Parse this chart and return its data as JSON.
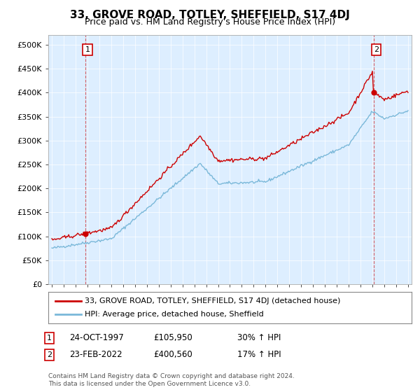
{
  "title": "33, GROVE ROAD, TOTLEY, SHEFFIELD, S17 4DJ",
  "subtitle": "Price paid vs. HM Land Registry's House Price Index (HPI)",
  "legend_line1": "33, GROVE ROAD, TOTLEY, SHEFFIELD, S17 4DJ (detached house)",
  "legend_line2": "HPI: Average price, detached house, Sheffield",
  "footnote": "Contains HM Land Registry data © Crown copyright and database right 2024.\nThis data is licensed under the Open Government Licence v3.0.",
  "annotation1_label": "1",
  "annotation1_date": "24-OCT-1997",
  "annotation1_price": "£105,950",
  "annotation1_hpi": "30% ↑ HPI",
  "annotation2_label": "2",
  "annotation2_date": "23-FEB-2022",
  "annotation2_price": "£400,560",
  "annotation2_hpi": "17% ↑ HPI",
  "hpi_color": "#7ab8d9",
  "price_color": "#cc0000",
  "dot_color": "#cc0000",
  "background_color": "#ffffff",
  "plot_bg_color": "#ddeeff",
  "grid_color": "#ffffff",
  "ylim": [
    0,
    520000
  ],
  "yticks": [
    0,
    50000,
    100000,
    150000,
    200000,
    250000,
    300000,
    350000,
    400000,
    450000,
    500000
  ],
  "ytick_labels": [
    "£0",
    "£50K",
    "£100K",
    "£150K",
    "£200K",
    "£250K",
    "£300K",
    "£350K",
    "£400K",
    "£450K",
    "£500K"
  ],
  "xmin_year": 1995,
  "xmax_year": 2025,
  "xticks": [
    1995,
    1996,
    1997,
    1998,
    1999,
    2000,
    2001,
    2002,
    2003,
    2004,
    2005,
    2006,
    2007,
    2008,
    2009,
    2010,
    2011,
    2012,
    2013,
    2014,
    2015,
    2016,
    2017,
    2018,
    2019,
    2020,
    2021,
    2022,
    2023,
    2024,
    2025
  ],
  "sale1_x": 1997.8,
  "sale1_y": 105950,
  "sale2_x": 2022.12,
  "sale2_y": 400560
}
